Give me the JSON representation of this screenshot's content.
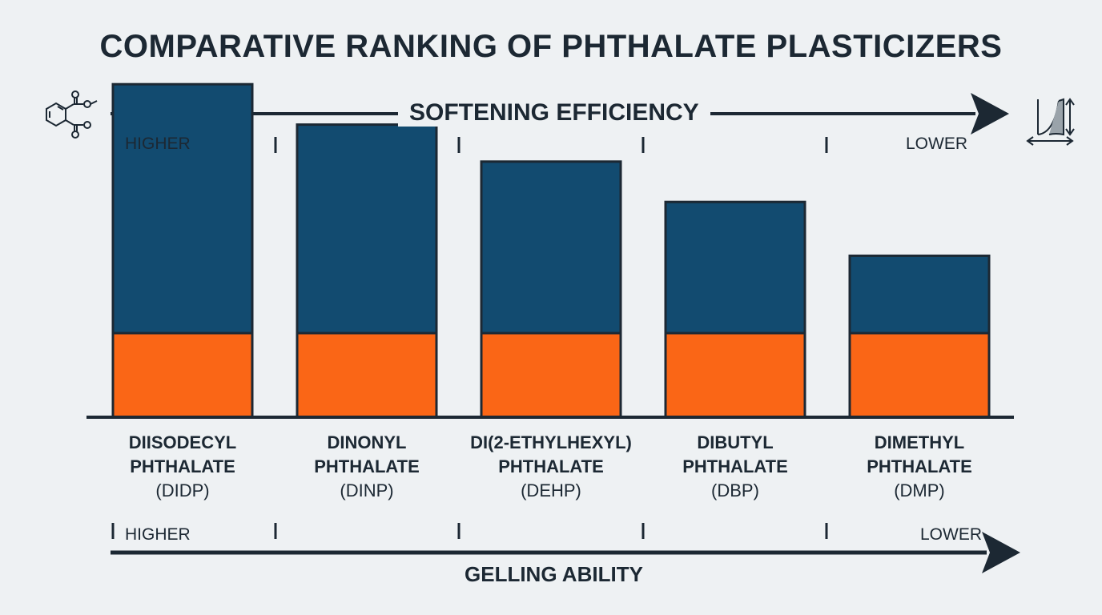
{
  "title": "COMPARATIVE RANKING OF PHTHALATE PLASTICIZERS",
  "top_axis": {
    "label": "SOFTENING EFFICIENCY",
    "high_label": "HIGHER",
    "low_label": "LOWER"
  },
  "bottom_axis": {
    "label": "GELLING ABILITY",
    "high_label": "HIGHER",
    "low_label": "LOWER"
  },
  "icons": {
    "left": "phthalate-molecule-icon",
    "right": "flexibility-strain-icon"
  },
  "colors": {
    "blue": "#124b70",
    "orange": "#fa6616",
    "outline": "#1c2833",
    "background": "#eef1f3"
  },
  "chart_data": {
    "type": "bar",
    "stacked": true,
    "categories": [
      {
        "line1": "DIISODECYL",
        "line2": "PHTHALATE",
        "abbr": "(DIDP)"
      },
      {
        "line1": "DINONYL",
        "line2": "PHTHALATE",
        "abbr": "(DINP)"
      },
      {
        "line1": "DI(2-ETHYLHEXYL)",
        "line2": "PHTHALATE",
        "abbr": "(DEHP)"
      },
      {
        "line1": "DIBUTYL",
        "line2": "PHTHALATE",
        "abbr": "(DBP)"
      },
      {
        "line1": "DIMETHYL",
        "line2": "PHTHALATE",
        "abbr": "(DMP)"
      }
    ],
    "series": [
      {
        "color": "#fa6616",
        "values": [
          25,
          25,
          25,
          25,
          25
        ]
      },
      {
        "color": "#124b70",
        "values": [
          74,
          62,
          51,
          39,
          23
        ]
      }
    ],
    "ylim": [
      0,
      100
    ],
    "grid": false,
    "legend": "none"
  }
}
